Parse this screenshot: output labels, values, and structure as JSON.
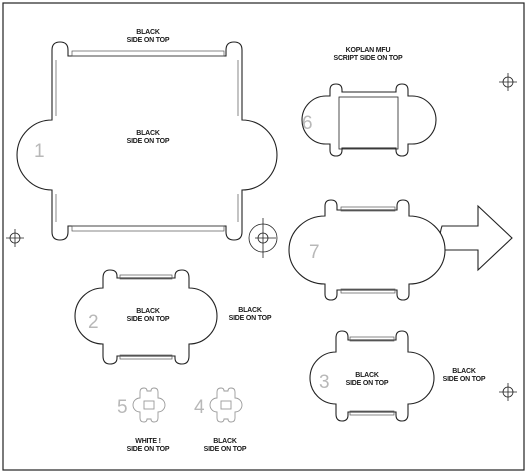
{
  "labels": {
    "black_side_on_top": [
      "BLACK",
      "SIDE ON TOP"
    ],
    "white_side_on_top": [
      "WHITE !",
      "SIDE ON TOP"
    ],
    "koplan_mfu": [
      "KOPLAN MFU",
      "SCRIPT SIDE ON TOP"
    ]
  },
  "pieces": [
    {
      "id": "1",
      "number": "1"
    },
    {
      "id": "2",
      "number": "2"
    },
    {
      "id": "3",
      "number": "3"
    },
    {
      "id": "4",
      "number": "4"
    },
    {
      "id": "5",
      "number": "5"
    },
    {
      "id": "6",
      "number": "6"
    },
    {
      "id": "7",
      "number": "7"
    }
  ],
  "colors": {
    "outline": "#222222",
    "number": "#b8b8b8",
    "small_piece": "#9a9a9a"
  }
}
